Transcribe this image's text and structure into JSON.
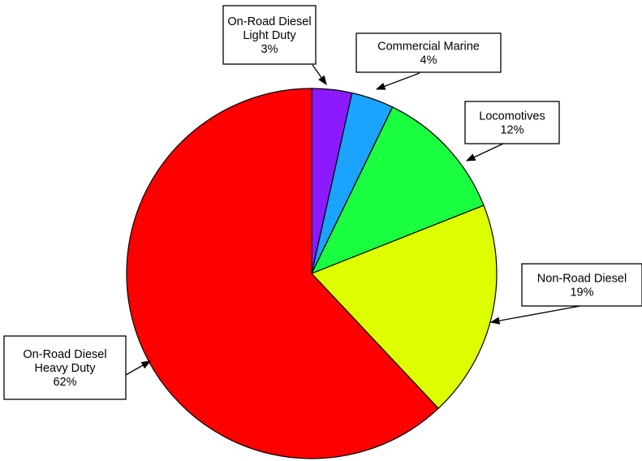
{
  "chart_data": {
    "type": "pie",
    "slices": [
      {
        "label_lines": [
          "On-Road Diesel",
          "Light Duty",
          "3%"
        ],
        "value": 3.5,
        "color": "#8c1aff"
      },
      {
        "label_lines": [
          "Commercial Marine",
          "4%"
        ],
        "value": 3.7,
        "color": "#1aa3ff"
      },
      {
        "label_lines": [
          "Locomotives",
          "12%"
        ],
        "value": 11.8,
        "color": "#1aff40"
      },
      {
        "label_lines": [
          "Non-Road Diesel",
          "19%"
        ],
        "value": 19.0,
        "color": "#ddff00"
      },
      {
        "label_lines": [
          "On-Road Diesel",
          "Heavy Duty",
          "62%"
        ],
        "value": 62.0,
        "color": "#ff0000"
      }
    ],
    "start": "12 o'clock",
    "direction": "clockwise",
    "legend": "none"
  }
}
